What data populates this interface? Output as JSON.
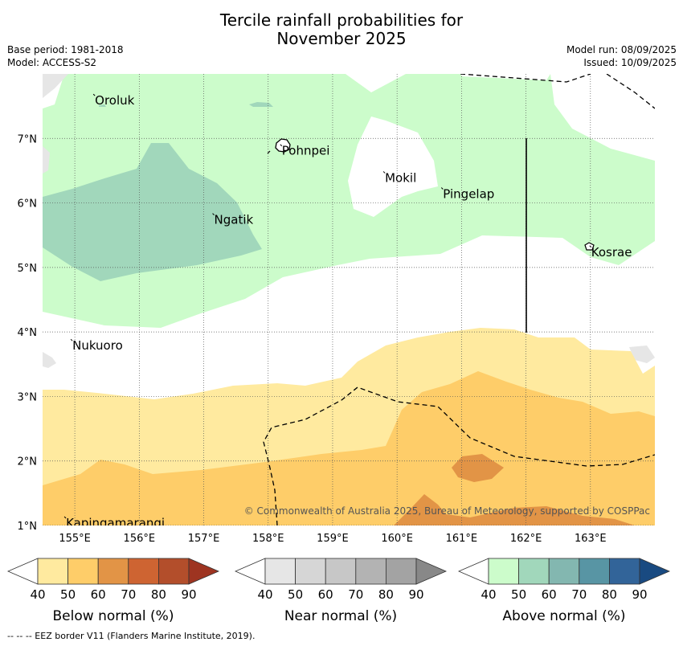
{
  "title_line1": "Tercile rainfall probabilities for",
  "title_line2": "November 2025",
  "base_period": "Base period: 1981-2018",
  "model": "Model: ACCESS-S2",
  "model_run": "Model run: 08/09/2025",
  "issued": "Issued: 10/09/2025",
  "copyright": "© Commonwealth of Australia 2025, Bureau of Meteorology, supported by COSPPac",
  "footer": "--  --  -- EEZ border V11 (Flanders Marine Institute, 2019).",
  "map": {
    "lon_range": [
      154.5,
      164.0
    ],
    "lat_range": [
      1.0,
      8.0
    ],
    "lon_ticks": [
      155,
      156,
      157,
      158,
      159,
      160,
      161,
      162,
      163
    ],
    "lon_tick_labels": [
      "155°E",
      "156°E",
      "157°E",
      "158°E",
      "159°E",
      "160°E",
      "161°E",
      "162°E",
      "163°E"
    ],
    "lat_ticks": [
      1,
      2,
      3,
      4,
      5,
      6,
      7
    ],
    "lat_tick_labels": [
      "1°N",
      "2°N",
      "3°N",
      "4°N",
      "5°N",
      "6°N",
      "7°N"
    ],
    "places": [
      {
        "name": "Oroluk",
        "lon": 155.3,
        "lat": 7.65
      },
      {
        "name": "Pohnpei",
        "lon": 158.2,
        "lat": 6.87
      },
      {
        "name": "Mokil",
        "lon": 159.8,
        "lat": 6.45
      },
      {
        "name": "Pingelap",
        "lon": 160.7,
        "lat": 6.2
      },
      {
        "name": "Ngatik",
        "lon": 157.15,
        "lat": 5.8
      },
      {
        "name": "Kosrae",
        "lon": 163.0,
        "lat": 5.3
      },
      {
        "name": "Nukuoro",
        "lon": 154.95,
        "lat": 3.85
      },
      {
        "name": "Kapingamarangi",
        "lon": 154.85,
        "lat": 1.1
      }
    ]
  },
  "colors": {
    "above": [
      "#ccfccb",
      "#a1d7bb",
      "#83b7b0",
      "#5895a4",
      "#326499",
      "#194a81"
    ],
    "near": [
      "#e6e6e6",
      "#d6d6d6",
      "#c7c7c7",
      "#b3b3b3",
      "#a3a3a3",
      "#888888"
    ],
    "below": [
      "#ffea9f",
      "#fecd69",
      "#e29446",
      "#ce6432",
      "#b34e2b",
      "#9e3421"
    ]
  },
  "legends": [
    {
      "label": "Below normal (%)",
      "ticks": [
        "40",
        "50",
        "60",
        "70",
        "80",
        "90"
      ],
      "palette": "below"
    },
    {
      "label": "Near normal (%)",
      "ticks": [
        "40",
        "50",
        "60",
        "70",
        "80",
        "90"
      ],
      "palette": "near"
    },
    {
      "label": "Above normal (%)",
      "ticks": [
        "40",
        "50",
        "60",
        "70",
        "80",
        "90"
      ],
      "palette": "above"
    }
  ]
}
